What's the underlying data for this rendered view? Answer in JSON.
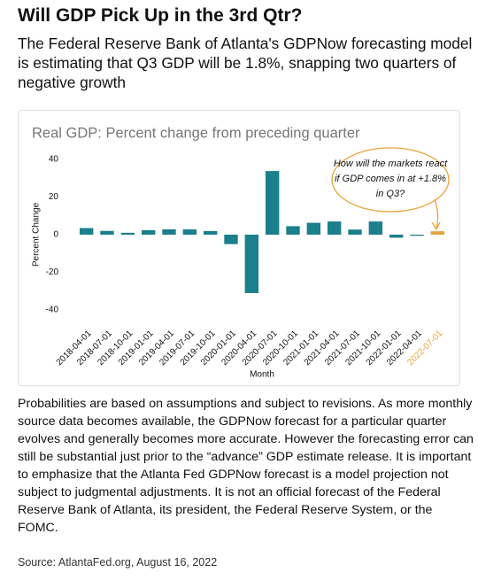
{
  "header": {
    "title": "Will GDP Pick Up in the 3rd Qtr?",
    "subtitle": "The Federal Reserve Bank of Atlanta's GDPNow forecasting model is estimating that Q3 GDP will be 1.8%, snapping two quarters of negative growth"
  },
  "chart_data": {
    "type": "bar",
    "title": "Real GDP: Percent change from preceding quarter",
    "x_label": "Month",
    "y_label": "Percent Change",
    "categories": [
      "2018-04-01",
      "2018-07-01",
      "2018-10-01",
      "2019-01-01",
      "2019-04-01",
      "2019-07-01",
      "2019-10-01",
      "2020-01-01",
      "2020-04-01",
      "2020-07-01",
      "2020-10-01",
      "2021-01-01",
      "2021-04-01",
      "2021-07-01",
      "2021-10-01",
      "2022-01-01",
      "2022-04-01",
      "2022-07-01"
    ],
    "values": [
      3.5,
      2.0,
      1.0,
      2.4,
      2.8,
      2.8,
      1.9,
      -5.0,
      -31.0,
      33.8,
      4.5,
      6.3,
      7.0,
      2.7,
      7.0,
      -1.6,
      -0.6,
      1.8
    ],
    "color": "#1b7f8c",
    "bar_colors": [
      "#1b7f8c",
      "#1b7f8c",
      "#1b7f8c",
      "#1b7f8c",
      "#1b7f8c",
      "#1b7f8c",
      "#1b7f8c",
      "#1b7f8c",
      "#1b7f8c",
      "#1b7f8c",
      "#1b7f8c",
      "#1b7f8c",
      "#1b7f8c",
      "#1b7f8c",
      "#1b7f8c",
      "#1b7f8c",
      "#1b7f8c",
      "#e8a33c"
    ],
    "ylim": [
      -47,
      47
    ],
    "yticks": [
      -40,
      -20,
      0,
      20,
      40
    ],
    "grid": false,
    "annotation": [
      "How will the markets react",
      "if GDP comes in at +1.8%",
      "in Q3?"
    ]
  },
  "body": "Probabilities are based on assumptions and subject to revisions. As more monthly source data becomes available, the GDPNow forecast for a particular quarter evolves and generally becomes more accurate. However the forecasting error can still be substantial just prior to the “advance” GDP estimate release. It is important to emphasize that the Atlanta Fed GDPNow forecast is a model projection not subject to judgmental adjustments. It is not an official forecast of the Federal Reserve Bank of Atlanta, its president, the Federal Reserve System, or the FOMC.",
  "source": "Source: AtlantaFed.org, August 16, 2022"
}
